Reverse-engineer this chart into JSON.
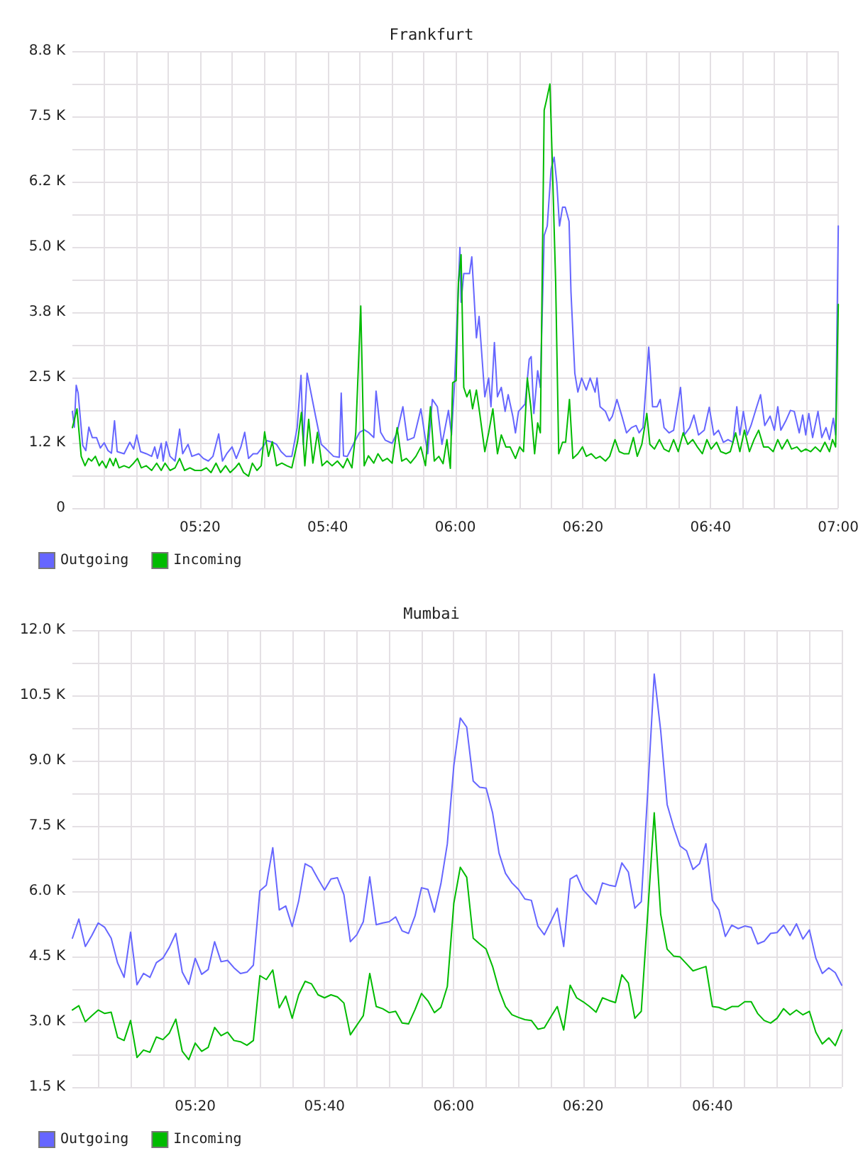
{
  "chart_data": [
    {
      "type": "line",
      "title": "Frankfurt",
      "series": [
        {
          "name": "Outgoing",
          "color": "#6666ff",
          "x": [
            5.0,
            5.005,
            5.01,
            5.015,
            5.027,
            5.035,
            5.043,
            5.052,
            5.063,
            5.073,
            5.083,
            5.093,
            5.102,
            5.11,
            5.117,
            5.135,
            5.15,
            5.16,
            5.168,
            5.178,
            5.193,
            5.207,
            5.215,
            5.222,
            5.232,
            5.237,
            5.245,
            5.255,
            5.268,
            5.28,
            5.288,
            5.302,
            5.312,
            5.33,
            5.342,
            5.355,
            5.367,
            5.382,
            5.392,
            5.403,
            5.417,
            5.428,
            5.44,
            5.45,
            5.46,
            5.472,
            5.483,
            5.497,
            5.508,
            5.522,
            5.533,
            5.545,
            5.558,
            5.573,
            5.587,
            5.597,
            5.603,
            5.613,
            5.635,
            5.65,
            5.663,
            5.682,
            5.697,
            5.702,
            5.708,
            5.718,
            5.737,
            5.75,
            5.762,
            5.773,
            5.787,
            5.793,
            5.805,
            5.817,
            5.835,
            5.848,
            5.863,
            5.875,
            5.892,
            5.91,
            5.922,
            5.928,
            5.94,
            5.953,
            5.965,
            5.982,
            5.99,
            5.998,
            6.012,
            6.015,
            6.022,
            6.037,
            6.043,
            6.055,
            6.062,
            6.077,
            6.087,
            6.093,
            6.102,
            6.11,
            6.12,
            6.13,
            6.138,
            6.15,
            6.157,
            6.165,
            6.182,
            6.193,
            6.198,
            6.205,
            6.215,
            6.222,
            6.232,
            6.24,
            6.25,
            6.258,
            6.265,
            6.272,
            6.28,
            6.287,
            6.297,
            6.302,
            6.312,
            6.32,
            6.33,
            6.342,
            6.352,
            6.365,
            6.37,
            6.378,
            6.392,
            6.402,
            6.41,
            6.422,
            6.435,
            6.447,
            6.46,
            6.472,
            6.48,
            6.49,
            6.505,
            6.515,
            6.527,
            6.535,
            6.545,
            6.558,
            6.57,
            6.588,
            6.598,
            6.612,
            6.623,
            6.635,
            6.65,
            6.663,
            6.675,
            6.687,
            6.7,
            6.712,
            6.725,
            6.735,
            6.743,
            6.752,
            6.762,
            6.772,
            6.787,
            6.797,
            6.808,
            6.822,
            6.833,
            6.842,
            6.85,
            6.863,
            6.875,
            6.885,
            6.898,
            6.907,
            6.915,
            6.923,
            6.933,
            6.947,
            6.957,
            6.968,
            6.977,
            6.987,
            6.993,
            7.0
          ],
          "values": [
            1.85,
            1.55,
            2.35,
            2.2,
            1.2,
            1.1,
            1.55,
            1.35,
            1.35,
            1.15,
            1.25,
            1.1,
            1.05,
            1.67,
            1.08,
            1.04,
            1.26,
            1.13,
            1.4,
            1.08,
            1.04,
            0.99,
            1.17,
            0.95,
            1.24,
            0.9,
            1.27,
            0.99,
            0.9,
            1.51,
            1.04,
            1.22,
            0.99,
            1.04,
            0.95,
            0.9,
            0.99,
            1.42,
            0.9,
            1.04,
            1.17,
            0.95,
            1.17,
            1.45,
            0.95,
            1.04,
            1.04,
            1.17,
            1.29,
            1.26,
            1.22,
            1.08,
            0.99,
            0.99,
            1.54,
            2.54,
            1.22,
            2.58,
            1.76,
            1.22,
            1.13,
            0.99,
            0.97,
            2.2,
            1.0,
            0.99,
            1.27,
            1.45,
            1.5,
            1.45,
            1.35,
            2.24,
            1.45,
            1.3,
            1.24,
            1.45,
            1.94,
            1.3,
            1.35,
            1.9,
            1.31,
            1.04,
            2.08,
            1.94,
            1.22,
            1.87,
            1.4,
            2.4,
            4.99,
            3.94,
            4.49,
            4.49,
            4.81,
            3.26,
            3.67,
            2.13,
            2.49,
            1.94,
            3.17,
            2.13,
            2.31,
            1.85,
            2.17,
            1.76,
            1.44,
            1.85,
            1.99,
            2.85,
            2.9,
            1.81,
            2.63,
            2.31,
            5.22,
            5.4,
            6.49,
            6.72,
            6.22,
            5.4,
            5.76,
            5.76,
            5.49,
            4.13,
            2.58,
            2.22,
            2.49,
            2.26,
            2.49,
            2.22,
            2.49,
            1.94,
            1.85,
            1.67,
            1.76,
            2.08,
            1.76,
            1.44,
            1.54,
            1.58,
            1.44,
            1.54,
            3.08,
            1.94,
            1.94,
            2.08,
            1.54,
            1.44,
            1.49,
            2.31,
            1.4,
            1.54,
            1.78,
            1.4,
            1.49,
            1.93,
            1.4,
            1.49,
            1.26,
            1.31,
            1.26,
            1.94,
            1.4,
            1.85,
            1.4,
            1.58,
            1.94,
            2.17,
            1.58,
            1.76,
            1.49,
            1.94,
            1.49,
            1.67,
            1.87,
            1.85,
            1.44,
            1.78,
            1.4,
            1.81,
            1.35,
            1.85,
            1.35,
            1.54,
            1.31,
            1.72,
            1.4,
            5.4
          ]
        },
        {
          "name": "Incoming",
          "color": "#00bb00",
          "x": [
            5.0,
            5.012,
            5.023,
            5.033,
            5.042,
            5.05,
            5.06,
            5.07,
            5.078,
            5.088,
            5.098,
            5.107,
            5.113,
            5.122,
            5.135,
            5.148,
            5.16,
            5.17,
            5.18,
            5.193,
            5.207,
            5.22,
            5.232,
            5.242,
            5.255,
            5.268,
            5.28,
            5.293,
            5.307,
            5.32,
            5.337,
            5.35,
            5.362,
            5.375,
            5.387,
            5.4,
            5.412,
            5.425,
            5.435,
            5.447,
            5.46,
            5.47,
            5.482,
            5.493,
            5.502,
            5.512,
            5.522,
            5.533,
            5.547,
            5.56,
            5.573,
            5.588,
            5.598,
            5.607,
            5.617,
            5.628,
            5.64,
            5.652,
            5.665,
            5.678,
            5.692,
            5.707,
            5.718,
            5.73,
            5.74,
            5.753,
            5.762,
            5.773,
            5.787,
            5.798,
            5.81,
            5.822,
            5.835,
            5.848,
            5.86,
            5.872,
            5.883,
            5.897,
            5.91,
            5.922,
            5.935,
            5.945,
            5.957,
            5.968,
            5.978,
            5.987,
            5.993,
            6.002,
            6.008,
            6.015,
            6.022,
            6.03,
            6.038,
            6.045,
            6.055,
            6.063,
            6.077,
            6.087,
            6.098,
            6.11,
            6.12,
            6.132,
            6.143,
            6.157,
            6.168,
            6.178,
            6.188,
            6.197,
            6.207,
            6.215,
            6.222,
            6.232,
            6.238,
            6.247,
            6.253,
            6.262,
            6.27,
            6.28,
            6.288,
            6.298,
            6.307,
            6.32,
            6.332,
            6.342,
            6.355,
            6.367,
            6.378,
            6.392,
            6.403,
            6.417,
            6.428,
            6.44,
            6.453,
            6.465,
            6.475,
            6.487,
            6.5,
            6.508,
            6.52,
            6.533,
            6.545,
            6.558,
            6.57,
            6.582,
            6.595,
            6.607,
            6.62,
            6.632,
            6.645,
            6.657,
            6.668,
            6.682,
            6.693,
            6.707,
            6.718,
            6.732,
            6.743,
            6.755,
            6.768,
            6.78,
            6.792,
            6.805,
            6.817,
            6.83,
            6.842,
            6.853,
            6.867,
            6.878,
            6.892,
            6.903,
            6.915,
            6.928,
            6.94,
            6.953,
            6.965,
            6.977,
            6.985,
            6.993,
            7.0
          ],
          "values": [
            1.54,
            1.9,
            0.99,
            0.81,
            0.95,
            0.9,
            0.99,
            0.81,
            0.9,
            0.77,
            0.95,
            0.81,
            0.95,
            0.77,
            0.81,
            0.77,
            0.86,
            0.95,
            0.77,
            0.81,
            0.72,
            0.86,
            0.72,
            0.86,
            0.72,
            0.77,
            0.95,
            0.72,
            0.77,
            0.72,
            0.72,
            0.77,
            0.68,
            0.86,
            0.68,
            0.81,
            0.68,
            0.77,
            0.86,
            0.68,
            0.61,
            0.86,
            0.72,
            0.81,
            1.46,
            0.99,
            1.27,
            0.81,
            0.86,
            0.81,
            0.77,
            1.27,
            1.83,
            0.81,
            1.7,
            0.86,
            1.45,
            0.81,
            0.9,
            0.81,
            0.9,
            0.77,
            0.95,
            0.77,
            1.45,
            3.87,
            0.81,
            1.0,
            0.86,
            1.04,
            0.9,
            0.95,
            0.86,
            1.54,
            0.9,
            0.95,
            0.86,
            0.99,
            1.17,
            0.81,
            1.94,
            0.9,
            0.99,
            0.85,
            1.31,
            0.76,
            2.4,
            2.44,
            4.31,
            4.85,
            2.31,
            2.13,
            2.26,
            1.9,
            2.26,
            1.85,
            1.08,
            1.44,
            1.9,
            1.04,
            1.4,
            1.17,
            1.17,
            0.95,
            1.17,
            1.08,
            2.49,
            1.94,
            1.04,
            1.63,
            1.44,
            7.62,
            7.81,
            8.12,
            6.67,
            4.31,
            1.04,
            1.26,
            1.26,
            2.08,
            0.95,
            1.04,
            1.17,
            0.99,
            1.04,
            0.95,
            0.99,
            0.9,
            0.99,
            1.31,
            1.08,
            1.04,
            1.04,
            1.35,
            0.99,
            1.22,
            1.81,
            1.22,
            1.13,
            1.31,
            1.13,
            1.08,
            1.31,
            1.08,
            1.44,
            1.22,
            1.31,
            1.17,
            1.04,
            1.31,
            1.13,
            1.26,
            1.08,
            1.04,
            1.08,
            1.44,
            1.08,
            1.49,
            1.08,
            1.31,
            1.49,
            1.17,
            1.17,
            1.08,
            1.31,
            1.13,
            1.31,
            1.13,
            1.17,
            1.08,
            1.13,
            1.08,
            1.17,
            1.08,
            1.26,
            1.08,
            1.31,
            1.17,
            3.9
          ]
        }
      ],
      "xlim": [
        5,
        7
      ],
      "xticks": [
        {
          "value": 5.0833,
          "label": null
        },
        {
          "value": 5.1667,
          "label": null
        },
        {
          "value": 5.25,
          "label": null
        },
        {
          "value": 5.3333,
          "label": "05:20"
        },
        {
          "value": 5.4167,
          "label": null
        },
        {
          "value": 5.5,
          "label": null
        },
        {
          "value": 5.5833,
          "label": null
        },
        {
          "value": 5.6667,
          "label": "05:40"
        },
        {
          "value": 5.75,
          "label": null
        },
        {
          "value": 5.8333,
          "label": null
        },
        {
          "value": 5.9167,
          "label": null
        },
        {
          "value": 6,
          "label": "06:00"
        },
        {
          "value": 6.0833,
          "label": null
        },
        {
          "value": 6.1667,
          "label": null
        },
        {
          "value": 6.25,
          "label": null
        },
        {
          "value": 6.3333,
          "label": "06:20"
        },
        {
          "value": 6.4167,
          "label": null
        },
        {
          "value": 6.5,
          "label": null
        },
        {
          "value": 6.5833,
          "label": null
        },
        {
          "value": 6.6667,
          "label": "06:40"
        },
        {
          "value": 6.75,
          "label": null
        },
        {
          "value": 6.8333,
          "label": null
        },
        {
          "value": 6.9167,
          "label": null
        },
        {
          "value": 7,
          "label": "07:00"
        }
      ],
      "ylim": [
        0,
        8.75
      ],
      "yticks": [
        0,
        {
          "value": 0.625,
          "label": null
        },
        {
          "value": 1.25,
          "label": "1.2 K"
        },
        {
          "value": 1.875,
          "label": null
        },
        {
          "value": 2.5,
          "label": "2.5 K"
        },
        {
          "value": 3.125,
          "label": null
        },
        {
          "value": 3.75,
          "label": "3.8 K"
        },
        {
          "value": 4.375,
          "label": null
        },
        {
          "value": 5,
          "label": "5.0 K"
        },
        {
          "value": 5.625,
          "label": null
        },
        {
          "value": 6.25,
          "label": "6.2 K"
        },
        {
          "value": 6.875,
          "label": null
        },
        {
          "value": 7.5,
          "label": "7.5 K"
        },
        {
          "value": 8.125,
          "label": null
        },
        {
          "value": 8.75,
          "label": "8.8 K"
        }
      ],
      "grid": true,
      "legend": "bottom left"
    },
    {
      "type": "line",
      "title": "Mumbai",
      "x": [
        5.0167,
        5.0333,
        5.05,
        5.0667,
        5.0833,
        5.1,
        5.1167,
        5.1333,
        5.15,
        5.1667,
        5.1833,
        5.2,
        5.2167,
        5.2333,
        5.25,
        5.2667,
        5.2833,
        5.3,
        5.3167,
        5.3333,
        5.35,
        5.3667,
        5.3833,
        5.4,
        5.4167,
        5.4333,
        5.45,
        5.4667,
        5.4833,
        5.5,
        5.5167,
        5.5333,
        5.55,
        5.5667,
        5.5833,
        5.6,
        5.6167,
        5.6333,
        5.65,
        5.6667,
        5.6833,
        5.7,
        5.7167,
        5.7333,
        5.75,
        5.7667,
        5.7833,
        5.8,
        5.8167,
        5.8333,
        5.85,
        5.8667,
        5.8833,
        5.9,
        5.9167,
        5.9333,
        5.95,
        5.9667,
        5.9833,
        6,
        6.0167,
        6.0333,
        6.05,
        6.0667,
        6.0833,
        6.1,
        6.1167,
        6.1333,
        6.15,
        6.1667,
        6.1833,
        6.2,
        6.2167,
        6.2333,
        6.25,
        6.2667,
        6.2833,
        6.3,
        6.3167,
        6.3333,
        6.35,
        6.3667,
        6.3833,
        6.4,
        6.4167,
        6.4333,
        6.45,
        6.4667,
        6.4833,
        6.5,
        6.5167,
        6.5333,
        6.55,
        6.5667,
        6.5833,
        6.6,
        6.6167,
        6.6333,
        6.65,
        6.6667,
        6.6833,
        6.7,
        6.7167,
        6.7333,
        6.75,
        6.7667,
        6.7833,
        6.8,
        6.8167,
        6.8333,
        6.85,
        6.8667,
        6.8833,
        6.9,
        6.9167,
        6.9333,
        6.95,
        6.9667,
        6.9833,
        7
      ],
      "series": [
        {
          "name": "Outgoing",
          "color": "#6666ff",
          "values": [
            4.92,
            5.36,
            4.73,
            4.98,
            5.27,
            5.17,
            4.92,
            4.35,
            4.02,
            5.06,
            3.85,
            4.11,
            4.02,
            4.36,
            4.46,
            4.71,
            5.03,
            4.14,
            3.86,
            4.46,
            4.09,
            4.2,
            4.84,
            4.38,
            4.41,
            4.24,
            4.11,
            4.14,
            4.3,
            6.01,
            6.14,
            7.0,
            5.57,
            5.66,
            5.19,
            5.77,
            6.63,
            6.55,
            6.28,
            6.03,
            6.28,
            6.31,
            5.92,
            4.84,
            5.0,
            5.3,
            6.33,
            5.23,
            5.27,
            5.3,
            5.41,
            5.09,
            5.03,
            5.43,
            6.08,
            6.04,
            5.52,
            6.17,
            7.09,
            8.88,
            9.98,
            9.77,
            8.53,
            8.39,
            8.37,
            7.8,
            6.87,
            6.41,
            6.19,
            6.04,
            5.82,
            5.79,
            5.2,
            5.0,
            5.3,
            5.61,
            4.73,
            6.28,
            6.37,
            6.03,
            5.87,
            5.7,
            6.19,
            6.14,
            6.11,
            6.65,
            6.44,
            5.61,
            5.76,
            8.3,
            10.99,
            9.69,
            7.99,
            7.47,
            7.04,
            6.93,
            6.5,
            6.63,
            7.09,
            5.79,
            5.57,
            4.96,
            5.22,
            5.14,
            5.2,
            5.17,
            4.79,
            4.85,
            5.03,
            5.05,
            5.22,
            4.98,
            5.25,
            4.9,
            5.11,
            4.46,
            4.11,
            4.24,
            4.13,
            3.84
          ]
        },
        {
          "name": "Incoming",
          "color": "#00bb00",
          "values": [
            3.27,
            3.37,
            3.0,
            3.14,
            3.27,
            3.19,
            3.22,
            2.64,
            2.57,
            3.03,
            2.18,
            2.35,
            2.3,
            2.65,
            2.59,
            2.74,
            3.06,
            2.32,
            2.13,
            2.51,
            2.32,
            2.41,
            2.87,
            2.68,
            2.76,
            2.57,
            2.54,
            2.46,
            2.57,
            4.06,
            3.97,
            4.19,
            3.32,
            3.59,
            3.08,
            3.62,
            3.93,
            3.87,
            3.62,
            3.55,
            3.62,
            3.57,
            3.43,
            2.7,
            2.92,
            3.14,
            4.11,
            3.35,
            3.3,
            3.21,
            3.24,
            2.97,
            2.95,
            3.28,
            3.65,
            3.48,
            3.21,
            3.33,
            3.81,
            5.72,
            6.55,
            6.32,
            4.92,
            4.79,
            4.67,
            4.27,
            3.73,
            3.35,
            3.16,
            3.1,
            3.05,
            3.03,
            2.83,
            2.86,
            3.11,
            3.35,
            2.81,
            3.84,
            3.55,
            3.46,
            3.35,
            3.22,
            3.55,
            3.49,
            3.44,
            4.08,
            3.89,
            3.08,
            3.24,
            5.5,
            7.8,
            5.47,
            4.67,
            4.51,
            4.49,
            4.33,
            4.17,
            4.22,
            4.27,
            3.35,
            3.33,
            3.27,
            3.35,
            3.35,
            3.46,
            3.46,
            3.19,
            3.03,
            2.97,
            3.08,
            3.3,
            3.16,
            3.27,
            3.16,
            3.24,
            2.76,
            2.49,
            2.63,
            2.45,
            2.81
          ]
        }
      ],
      "xlim": [
        5.0167,
        7
      ],
      "xticks": [
        {
          "value": 5.0833,
          "label": null
        },
        {
          "value": 5.1667,
          "label": null
        },
        {
          "value": 5.25,
          "label": null
        },
        {
          "value": 5.3333,
          "label": "05:20"
        },
        {
          "value": 5.4167,
          "label": null
        },
        {
          "value": 5.5,
          "label": null
        },
        {
          "value": 5.5833,
          "label": null
        },
        {
          "value": 5.6667,
          "label": "05:40"
        },
        {
          "value": 5.75,
          "label": null
        },
        {
          "value": 5.8333,
          "label": null
        },
        {
          "value": 5.9167,
          "label": null
        },
        {
          "value": 6,
          "label": "06:00"
        },
        {
          "value": 6.0833,
          "label": null
        },
        {
          "value": 6.1667,
          "label": null
        },
        {
          "value": 6.25,
          "label": null
        },
        {
          "value": 6.3333,
          "label": "06:20"
        },
        {
          "value": 6.4167,
          "label": null
        },
        {
          "value": 6.5,
          "label": null
        },
        {
          "value": 6.5833,
          "label": null
        },
        {
          "value": 6.6667,
          "label": "06:40"
        },
        {
          "value": 6.75,
          "label": null
        },
        {
          "value": 6.8333,
          "label": null
        },
        {
          "value": 6.9167,
          "label": null
        },
        {
          "value": 7,
          "label": null
        }
      ],
      "ylim": [
        1.5,
        12
      ],
      "yticks": [
        {
          "value": 1.5,
          "label": "1.5 K"
        },
        {
          "value": 2.25,
          "label": null
        },
        {
          "value": 3,
          "label": "3.0 K"
        },
        {
          "value": 3.75,
          "label": null
        },
        {
          "value": 4.5,
          "label": "4.5 K"
        },
        {
          "value": 5.25,
          "label": null
        },
        {
          "value": 6,
          "label": "6.0 K"
        },
        {
          "value": 6.75,
          "label": null
        },
        {
          "value": 7.5,
          "label": "7.5 K"
        },
        {
          "value": 8.25,
          "label": null
        },
        {
          "value": 9,
          "label": "9.0 K"
        },
        {
          "value": 9.75,
          "label": null
        },
        {
          "value": 10.5,
          "label": "10.5 K"
        },
        {
          "value": 11.25,
          "label": null
        },
        {
          "value": 12,
          "label": "12.0 K"
        }
      ],
      "grid": true,
      "legend": "bottom left"
    }
  ]
}
